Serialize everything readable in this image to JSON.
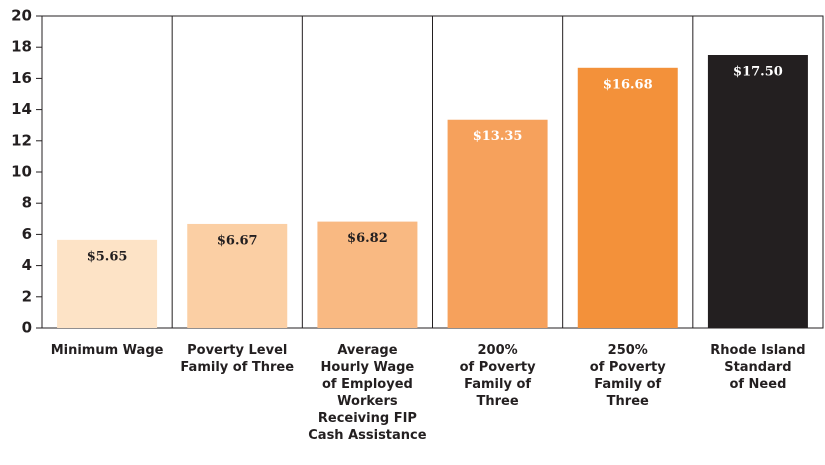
{
  "chart_data": {
    "type": "bar",
    "categories": [
      "Minimum Wage",
      "Poverty Level\nFamily of Three",
      "Average\nHourly Wage\nof Employed\nWorkers\nReceiving FIP\nCash Assistance",
      "200%\nof Poverty\nFamily of\nThree",
      "250%\nof Poverty\nFamily of\nThree",
      "Rhode Island\nStandard\nof Need"
    ],
    "values": [
      5.65,
      6.67,
      6.82,
      13.35,
      16.68,
      17.5
    ],
    "value_labels": [
      "$5.65",
      "$6.67",
      "$6.82",
      "$13.35",
      "$16.68",
      "$17.50"
    ],
    "colors": [
      "#fde3c6",
      "#fbcfa4",
      "#f9b982",
      "#f6a15c",
      "#f3913a",
      "#231f20"
    ],
    "label_colors": [
      "#231f20",
      "#231f20",
      "#231f20",
      "#ffffff",
      "#ffffff",
      "#ffffff"
    ],
    "ylim": [
      0,
      20
    ],
    "yticks": [
      0,
      2,
      4,
      6,
      8,
      10,
      12,
      14,
      16,
      18,
      20
    ]
  }
}
